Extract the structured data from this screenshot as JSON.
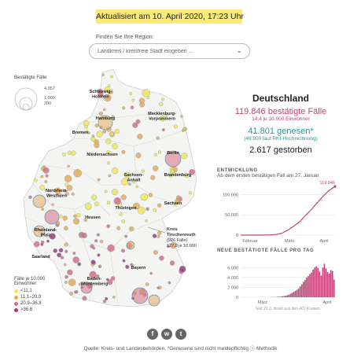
{
  "banner": {
    "updated": "Aktualisiert am 10. April 2020, 17:23 Uhr"
  },
  "search": {
    "label": "Finden Sie Ihre Region:",
    "placeholder": "Landkreis / kreisfreie Stadt eingeben ..."
  },
  "legend_size": {
    "title": "Bestätigte Fälle",
    "values": [
      "4.357",
      "1.000",
      "200"
    ]
  },
  "legend_color": {
    "title_line1": "Fälle je 10.000",
    "title_line2": "Einwohner",
    "items": [
      {
        "label": "<11,1",
        "color": "#f2e35a"
      },
      {
        "label": "11,1–20,9",
        "color": "#e4a960"
      },
      {
        "label": "20,9–36,8",
        "color": "#d46f86"
      },
      {
        "label": ">36,8",
        "color": "#a23b77"
      }
    ]
  },
  "map": {
    "regions": [
      "Schleswig-\nHolstein",
      "Hamburg",
      "Mecklenburg-\nVorpommern",
      "Bremen",
      "Niedersachsen",
      "Berlin",
      "Sachsen-\nAnhalt",
      "Brandenburg",
      "Nordrhein-\nWestfalen",
      "Thüringen",
      "Sachsen",
      "Hessen",
      "Rheinland-\nPfalz",
      "Saarland",
      "Baden-\nWürttemberg",
      "Bayern"
    ],
    "callout": {
      "name_line1": "Kreis",
      "name_line2": "Tirschenreuth",
      "cases": "(926 Fälle)",
      "rate": "127,0 je 10.000"
    }
  },
  "summary": {
    "country": "Deutschland",
    "confirmed_value": "119.846",
    "confirmed_label": "bestätigte Fälle",
    "confirmed_rate": "14,4 je 10.000 Einwohner",
    "recovered_value": "41.801",
    "recovered_label": "genesen*",
    "recovered_note": "(49.900 laut RKI-Hochrechnung)",
    "deaths_value": "2.617",
    "deaths_label": "gestorben"
  },
  "chart_data": [
    {
      "type": "line",
      "title": "ENTWICKLUNG",
      "subtitle": "Ab dem ersten bestätigen Fall am 27. Januar",
      "x": [
        "27.01",
        "05.02",
        "15.02",
        "25.02",
        "01.03",
        "05.03",
        "10.03",
        "14.03",
        "18.03",
        "21.03",
        "24.03",
        "27.03",
        "30.03",
        "02.04",
        "05.04",
        "08.04",
        "10.04"
      ],
      "values": [
        1,
        12,
        16,
        18,
        130,
        550,
        1600,
        4600,
        12300,
        22000,
        32900,
        48500,
        63000,
        80000,
        96100,
        110000,
        119846
      ],
      "xticks": [
        "Februar",
        "März",
        "April"
      ],
      "yticks": [
        "100.000",
        "50.000",
        "0"
      ],
      "ylim": [
        0,
        120000
      ],
      "end_label": "119.846",
      "color": "#c2427a"
    },
    {
      "type": "bar",
      "title": "NEUE BESTÄTIGTE FÄLLE PRO TAG",
      "note": "Seit 21.3. direkt aus den 401 Kreisen",
      "values": [
        10,
        20,
        30,
        40,
        50,
        80,
        120,
        150,
        200,
        250,
        300,
        400,
        500,
        700,
        900,
        1100,
        1300,
        1500,
        1800,
        2200,
        2600,
        3100,
        3500,
        4000,
        4300,
        4700,
        5000,
        5600,
        6000,
        6300,
        5900,
        5200,
        4400,
        6000,
        6800,
        5800,
        5100,
        4800,
        5500,
        5300,
        3600
      ],
      "xticks": [
        "März",
        "April"
      ],
      "yticks": [
        "6.000",
        "4.000",
        "2.000",
        "0"
      ],
      "ylim": [
        0,
        7000
      ],
      "color": "#c2427a"
    }
  ],
  "share": {
    "facebook": "f",
    "whatsapp": "w",
    "twitter": "t"
  },
  "footer": {
    "source": "Quelle: Kreis- und Landesbehörden. *Genesene sind nicht meldepflichtig ⓘ Methodik"
  }
}
